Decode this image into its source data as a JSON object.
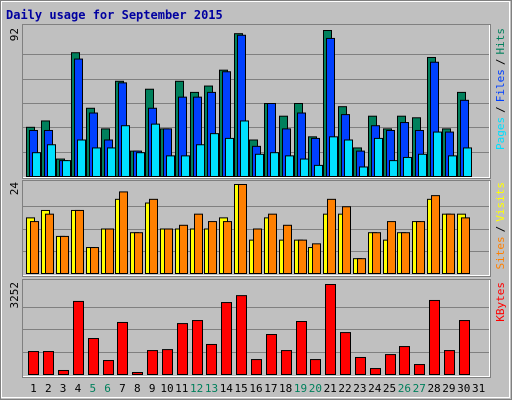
{
  "title": "Daily usage for September 2015",
  "legend_separator": "/",
  "chart_data": [
    {
      "type": "bar",
      "ylim": [
        0,
        92
      ],
      "yticks": [
        92
      ],
      "series": [
        {
          "name": "Hits",
          "color": "#00805c",
          "values": [
            31,
            35,
            11,
            78,
            43,
            30,
            60,
            16,
            55,
            30,
            60,
            53,
            57,
            67,
            90,
            23,
            46,
            38,
            46,
            25,
            92,
            44,
            18,
            38,
            30,
            38,
            37,
            75,
            30,
            53,
            null
          ]
        },
        {
          "name": "Files",
          "color": "#0040ff",
          "values": [
            29,
            29,
            10,
            74,
            40,
            23,
            59,
            16,
            43,
            30,
            50,
            50,
            53,
            66,
            89,
            19,
            46,
            30,
            40,
            24,
            87,
            39,
            16,
            32,
            29,
            34,
            29,
            72,
            28,
            48,
            null
          ]
        },
        {
          "name": "Pages",
          "color": "#00e0ff",
          "values": [
            15,
            20,
            10,
            23,
            18,
            18,
            32,
            15,
            33,
            13,
            13,
            20,
            27,
            24,
            35,
            14,
            15,
            13,
            11,
            7,
            25,
            23,
            6,
            24,
            10,
            12,
            14,
            28,
            13,
            18,
            null
          ]
        }
      ]
    },
    {
      "type": "bar",
      "ylim": [
        0,
        24
      ],
      "yticks": [
        24
      ],
      "series": [
        {
          "name": "Visits",
          "color": "#ffff00",
          "values": [
            15,
            17,
            10,
            17,
            7,
            12,
            20,
            11,
            19,
            12,
            12,
            12,
            12,
            15,
            24,
            9,
            15,
            9,
            9,
            7,
            16,
            16,
            4,
            11,
            9,
            11,
            14,
            20,
            16,
            16,
            null
          ]
        },
        {
          "name": "Sites",
          "color": "#ff8000",
          "values": [
            14,
            16,
            10,
            17,
            7,
            12,
            22,
            11,
            20,
            12,
            13,
            16,
            14,
            14,
            24,
            12,
            16,
            13,
            9,
            8,
            20,
            18,
            4,
            11,
            14,
            11,
            14,
            21,
            16,
            15,
            null
          ]
        }
      ]
    },
    {
      "type": "bar",
      "ylim": [
        0,
        3252
      ],
      "yticks": [
        3252
      ],
      "categories": [
        "1",
        "2",
        "3",
        "4",
        "5",
        "6",
        "7",
        "8",
        "9",
        "10",
        "11",
        "12",
        "13",
        "14",
        "15",
        "16",
        "17",
        "18",
        "19",
        "20",
        "21",
        "22",
        "23",
        "24",
        "25",
        "26",
        "27",
        "28",
        "29",
        "30",
        "31"
      ],
      "highlight_color": "#00805c",
      "highlight_indices": [
        4,
        5,
        11,
        12,
        18,
        19,
        25,
        26
      ],
      "series": [
        {
          "name": "KBytes",
          "color": "#ff0000",
          "values": [
            830,
            830,
            145,
            2640,
            1300,
            505,
            1880,
            72,
            865,
            900,
            1840,
            1950,
            1085,
            2600,
            2850,
            540,
            1445,
            865,
            1915,
            540,
            3252,
            1515,
            615,
            215,
            720,
            1010,
            360,
            2675,
            865,
            1950,
            null
          ]
        }
      ]
    }
  ]
}
